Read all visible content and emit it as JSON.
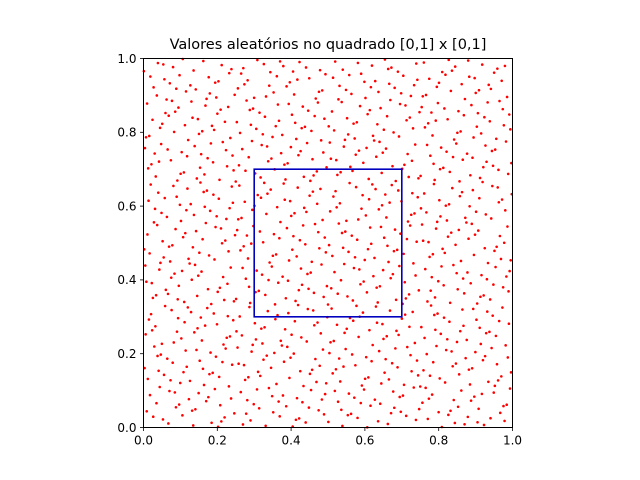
{
  "chart_data": {
    "type": "scatter",
    "title": "Valores aleatórios no quadrado [0,1] x [0,1]",
    "xlabel": "",
    "ylabel": "",
    "xlim": [
      0,
      1
    ],
    "ylim": [
      0,
      1
    ],
    "xticks": [
      0.0,
      0.2,
      0.4,
      0.6,
      0.8,
      1.0
    ],
    "xtick_labels": [
      "0.0",
      "0.2",
      "0.4",
      "0.6",
      "0.8",
      "1.0"
    ],
    "yticks": [
      0.0,
      0.2,
      0.4,
      0.6,
      0.8,
      1.0
    ],
    "ytick_labels": [
      "0.0",
      "0.2",
      "0.4",
      "0.6",
      "0.8",
      "1.0"
    ],
    "grid": false,
    "legend": "none",
    "point_color": "#ff0000",
    "point_count_estimate": 1000,
    "point_distribution": "quasi-random low-discrepancy sequence covering the unit square",
    "highlight_square": {
      "x": [
        0.3,
        0.7
      ],
      "y": [
        0.3,
        0.7
      ],
      "color": "#0000bf"
    }
  }
}
